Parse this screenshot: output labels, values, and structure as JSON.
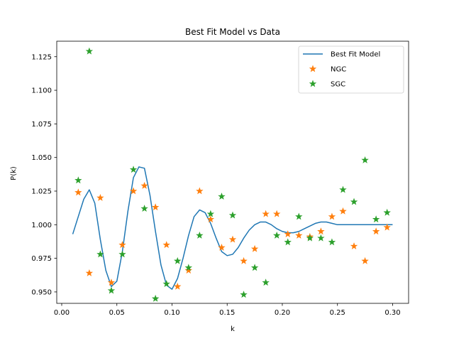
{
  "chart_data": {
    "type": "scatter",
    "title": "Best Fit Model vs Data",
    "xlabel": "k",
    "ylabel": "P(k)",
    "xlim": [
      -0.0045,
      0.3145
    ],
    "ylim": [
      0.9415,
      1.1365
    ],
    "xticks": [
      0.0,
      0.05,
      0.1,
      0.15,
      0.2,
      0.25,
      0.3
    ],
    "xtick_labels": [
      "0.00",
      "0.05",
      "0.10",
      "0.15",
      "0.20",
      "0.25",
      "0.30"
    ],
    "yticks": [
      0.95,
      0.975,
      1.0,
      1.025,
      1.05,
      1.075,
      1.1,
      1.125
    ],
    "ytick_labels": [
      "0.950",
      "0.975",
      "1.000",
      "1.025",
      "1.050",
      "1.075",
      "1.100",
      "1.125"
    ],
    "grid": false,
    "legend_position": "top-right",
    "series": [
      {
        "name": "Best Fit Model",
        "kind": "line",
        "color": "#1f77b4",
        "x": [
          0.01,
          0.015,
          0.02,
          0.025,
          0.03,
          0.035,
          0.04,
          0.045,
          0.05,
          0.055,
          0.06,
          0.065,
          0.07,
          0.075,
          0.08,
          0.085,
          0.09,
          0.095,
          0.1,
          0.105,
          0.11,
          0.115,
          0.12,
          0.125,
          0.13,
          0.135,
          0.14,
          0.145,
          0.15,
          0.155,
          0.16,
          0.165,
          0.17,
          0.175,
          0.18,
          0.185,
          0.19,
          0.195,
          0.2,
          0.205,
          0.21,
          0.215,
          0.22,
          0.225,
          0.23,
          0.235,
          0.24,
          0.245,
          0.25,
          0.255,
          0.26,
          0.265,
          0.27,
          0.275,
          0.28,
          0.285,
          0.29,
          0.295,
          0.3
        ],
        "y": [
          0.993,
          1.006,
          1.019,
          1.026,
          1.016,
          0.989,
          0.966,
          0.954,
          0.958,
          0.98,
          1.01,
          1.035,
          1.043,
          1.042,
          1.022,
          0.995,
          0.97,
          0.955,
          0.952,
          0.96,
          0.975,
          0.992,
          1.006,
          1.011,
          1.009,
          1.001,
          0.99,
          0.98,
          0.977,
          0.978,
          0.983,
          0.99,
          0.996,
          1.0,
          1.002,
          1.002,
          1.0,
          0.997,
          0.995,
          0.994,
          0.994,
          0.995,
          0.997,
          0.999,
          1.001,
          1.002,
          1.002,
          1.001,
          1.0,
          1.0,
          1.0,
          1.0,
          1.0,
          1.0,
          1.0,
          1.0,
          1.0,
          1.0,
          1.0
        ]
      },
      {
        "name": "NGC",
        "kind": "scatter",
        "marker": "star",
        "color": "#ff7f0e",
        "x": [
          0.015,
          0.025,
          0.035,
          0.045,
          0.055,
          0.065,
          0.075,
          0.085,
          0.095,
          0.105,
          0.115,
          0.125,
          0.135,
          0.145,
          0.155,
          0.165,
          0.175,
          0.185,
          0.195,
          0.205,
          0.215,
          0.225,
          0.235,
          0.245,
          0.255,
          0.265,
          0.275,
          0.285,
          0.295
        ],
        "y": [
          1.024,
          0.964,
          1.02,
          0.957,
          0.985,
          1.025,
          1.029,
          1.013,
          0.985,
          0.954,
          0.966,
          1.025,
          1.004,
          0.983,
          0.989,
          0.973,
          0.982,
          1.008,
          1.008,
          0.993,
          0.992,
          0.991,
          0.995,
          1.006,
          1.01,
          0.984,
          0.973,
          0.995,
          0.998
        ]
      },
      {
        "name": "SGC",
        "kind": "scatter",
        "marker": "star",
        "color": "#2ca02c",
        "x": [
          0.015,
          0.025,
          0.035,
          0.045,
          0.055,
          0.065,
          0.075,
          0.085,
          0.095,
          0.105,
          0.115,
          0.125,
          0.135,
          0.145,
          0.155,
          0.165,
          0.175,
          0.185,
          0.195,
          0.205,
          0.215,
          0.225,
          0.235,
          0.245,
          0.255,
          0.265,
          0.275,
          0.285,
          0.295
        ],
        "y": [
          1.033,
          1.129,
          0.978,
          0.951,
          0.978,
          1.041,
          1.012,
          0.945,
          0.956,
          0.973,
          0.968,
          0.992,
          1.008,
          1.021,
          1.007,
          0.948,
          0.968,
          0.957,
          0.992,
          0.987,
          1.006,
          0.99,
          0.99,
          0.987,
          1.026,
          1.017,
          1.048,
          1.004,
          1.009
        ]
      }
    ]
  }
}
